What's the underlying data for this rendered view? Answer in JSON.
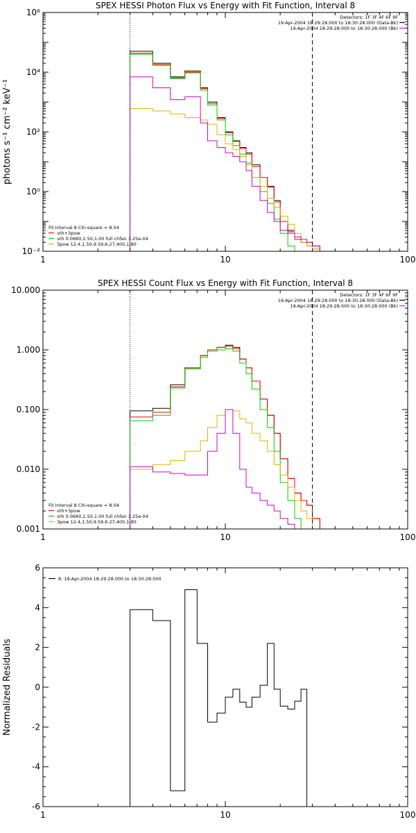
{
  "chart_data": [
    {
      "type": "line",
      "title": "SPEX HESSI Photon Flux vs Energy with Fit Function, Interval 8",
      "xlabel": "",
      "ylabel": "photons s⁻¹ cm⁻² keV⁻¹",
      "xscale": "log",
      "yscale": "log",
      "xlim": [
        1,
        100
      ],
      "ylim": [
        0.01,
        1000000
      ],
      "x_ticks": [
        1,
        10,
        100
      ],
      "x_tick_labels": [
        "1",
        "10",
        "100"
      ],
      "y_ticks": [
        0.01,
        1,
        100,
        10000,
        1000000
      ],
      "y_tick_labels": [
        "10⁻²",
        "10⁰",
        "10²",
        "10⁴",
        "10⁶"
      ],
      "vlines": [
        {
          "x": 3,
          "style": "dotted"
        },
        {
          "x": 30,
          "style": "dashed"
        }
      ],
      "header_right": [
        "Detectors: 1F 3F 4F 6F 9F",
        "19-Apr-2004 18:29:28.000 to 18:30:28.000 (Data-Bk)",
        "19-Apr-2004 18:29:28.000 to 18:30:28.000 (Bk)"
      ],
      "header_colors": [
        "#000000",
        "#ff00ff"
      ],
      "legend_position": "bottom-left",
      "fit_text": "Fit Interval 8   Chi-square = 8.04",
      "edges": [
        3,
        3.5,
        4,
        4.5,
        5,
        5.5,
        6,
        6.7,
        7.3,
        8,
        9,
        10,
        11,
        12,
        13,
        14,
        15.5,
        17,
        18.5,
        20,
        22,
        24,
        26,
        28,
        30,
        33
      ],
      "series": [
        {
          "name": "",
          "color": "#000000",
          "values": [
            50000,
            50000,
            20000,
            20000,
            7000,
            7000,
            11000,
            11000,
            3000,
            1000,
            300,
            100,
            50,
            30,
            20,
            8,
            3,
            1.5,
            0.5,
            0.1,
            0.05,
            0.03,
            0.02,
            0.02,
            0.015
          ]
        },
        {
          "name": "vth+3pow",
          "color": "#ff0000",
          "values": [
            43000,
            43000,
            18000,
            18000,
            6500,
            6500,
            10000,
            10000,
            2800,
            900,
            280,
            95,
            48,
            28,
            18,
            7,
            3,
            1.4,
            0.45,
            0.1,
            0.045,
            0.025,
            0.02,
            0.015,
            0.012
          ]
        },
        {
          "name": "vth 0.0680,1.50,1.00  full chfan 3.25e-04",
          "color": "#00cc00",
          "values": [
            40000,
            40000,
            17000,
            17000,
            6000,
            6000,
            9500,
            9500,
            2500,
            800,
            250,
            80,
            35,
            18,
            9,
            3,
            1,
            0.4,
            0.12,
            0.04,
            0.015,
            0.01,
            0.01,
            0.01,
            0.01
          ]
        },
        {
          "name": "3pow  12.4,1.50,9.59,6.27,400,1.80",
          "color": "#e0b000",
          "values": [
            600,
            600,
            500,
            500,
            400,
            400,
            300,
            300,
            250,
            180,
            80,
            40,
            25,
            15,
            8,
            3,
            1.5,
            0.6,
            0.3,
            0.15,
            0.08,
            0.04,
            0.02,
            0.015,
            0.012
          ]
        },
        {
          "name": "",
          "color": "#cc00cc",
          "values": [
            7000,
            7000,
            3000,
            3000,
            1200,
            1200,
            1500,
            1500,
            200,
            50,
            30,
            20,
            15,
            10,
            5,
            1.5,
            0.5,
            0.2,
            0.1,
            0.05,
            0.04,
            0.03,
            0.025,
            0.02,
            0.015
          ]
        }
      ]
    },
    {
      "type": "line",
      "title": "SPEX HESSI Count Flux vs Energy with Fit Function, Interval 8",
      "xlabel": "",
      "ylabel": "",
      "xscale": "log",
      "yscale": "log",
      "xlim": [
        1,
        100
      ],
      "ylim": [
        0.001,
        10
      ],
      "x_ticks": [
        1,
        10,
        100
      ],
      "x_tick_labels": [
        "1",
        "10",
        "100"
      ],
      "y_ticks": [
        0.001,
        0.01,
        0.1,
        1,
        10
      ],
      "y_tick_labels": [
        "0.001",
        "0.010",
        "0.100",
        "1.000",
        "10.000"
      ],
      "vlines": [
        {
          "x": 3,
          "style": "dotted"
        },
        {
          "x": 30,
          "style": "dashed"
        }
      ],
      "header_right": [
        "Detectors: 1F 3F 4F 6F 9F",
        "19-Apr-2004 18:29:28.000 to 18:30:28.000 (Data-Bk)",
        "19-Apr-2004 18:29:28.000 to 18:30:28.000 (Bk)"
      ],
      "header_colors": [
        "#000000",
        "#ff00ff"
      ],
      "legend_position": "bottom-left",
      "fit_text": "Fit Interval 8   Chi-square = 8.04",
      "edges": [
        3,
        3.5,
        4,
        4.5,
        5,
        5.5,
        6,
        6.7,
        7.3,
        8,
        9,
        10,
        11,
        12,
        13,
        14,
        15.5,
        17,
        18.5,
        20,
        22,
        24,
        26,
        28,
        30,
        33
      ],
      "series": [
        {
          "name": "",
          "color": "#000000",
          "values": [
            0.095,
            0.095,
            0.105,
            0.105,
            0.26,
            0.26,
            0.5,
            0.5,
            0.8,
            1.0,
            1.1,
            1.2,
            1.1,
            0.7,
            0.5,
            0.3,
            0.15,
            0.08,
            0.04,
            0.015,
            0.007,
            0.004,
            0.003,
            0.0025,
            0.0015
          ]
        },
        {
          "name": "vth+3pow",
          "color": "#ff0000",
          "values": [
            0.075,
            0.075,
            0.09,
            0.09,
            0.24,
            0.24,
            0.5,
            0.5,
            0.8,
            1.0,
            1.1,
            1.15,
            1.05,
            0.7,
            0.5,
            0.3,
            0.15,
            0.08,
            0.04,
            0.015,
            0.007,
            0.004,
            0.003,
            0.0025,
            0.0015
          ]
        },
        {
          "name": "vth 0.0680,1.50,1.00  full chfan 3.25e-04",
          "color": "#00cc00",
          "values": [
            0.065,
            0.065,
            0.08,
            0.08,
            0.23,
            0.23,
            0.48,
            0.48,
            0.75,
            0.95,
            1.0,
            1.05,
            0.95,
            0.6,
            0.4,
            0.22,
            0.1,
            0.05,
            0.02,
            0.006,
            0.003,
            0.0015,
            0.001,
            0.001,
            0.001
          ]
        },
        {
          "name": "3pow  12.4,1.50,9.59,6.27,400,1.80",
          "color": "#e0b000",
          "values": [
            0.01,
            0.01,
            0.012,
            0.012,
            0.014,
            0.014,
            0.02,
            0.02,
            0.03,
            0.05,
            0.08,
            0.1,
            0.095,
            0.07,
            0.06,
            0.04,
            0.03,
            0.02,
            0.012,
            0.008,
            0.005,
            0.003,
            0.002,
            0.0015,
            0.001
          ]
        },
        {
          "name": "",
          "color": "#cc00cc",
          "values": [
            0.011,
            0.011,
            0.009,
            0.009,
            0.0085,
            0.0085,
            0.008,
            0.008,
            0.008,
            0.02,
            0.04,
            0.1,
            0.04,
            0.01,
            0.005,
            0.004,
            0.003,
            0.0025,
            0.002,
            0.0015,
            0.0012,
            0.001,
            0.001,
            0.001,
            0.001
          ]
        }
      ]
    },
    {
      "type": "line",
      "title": "",
      "xlabel": "",
      "ylabel": "Normalized Residuals",
      "xscale": "log",
      "yscale": "linear",
      "xlim": [
        1,
        100
      ],
      "ylim": [
        -6,
        6
      ],
      "x_ticks": [
        1,
        10,
        100
      ],
      "x_tick_labels": [
        "1",
        "10",
        "100"
      ],
      "y_ticks": [
        -6,
        -4,
        -2,
        0,
        2,
        4,
        6
      ],
      "y_tick_labels": [
        "-6",
        "-4",
        "-2",
        "0",
        "2",
        "4",
        "6"
      ],
      "legend_position": "top-left",
      "legend": "8. 19-Apr-2004 18:29:28.000 to 18:30:28.000",
      "edges": [
        3,
        4,
        5,
        6,
        7,
        8,
        9,
        10,
        11,
        12,
        13,
        14,
        15.5,
        17,
        18.5,
        20,
        22,
        24,
        26,
        28,
        30
      ],
      "series": [
        {
          "name": "",
          "color": "#000000",
          "values": [
            3.9,
            3.35,
            -5.2,
            4.9,
            2.2,
            -1.75,
            -1.3,
            -0.5,
            -0.1,
            -0.75,
            -1.0,
            -0.5,
            0.1,
            2.2,
            -0.1,
            -0.95,
            -1.1,
            -0.7,
            -0.1,
            -6.0
          ]
        }
      ]
    }
  ]
}
